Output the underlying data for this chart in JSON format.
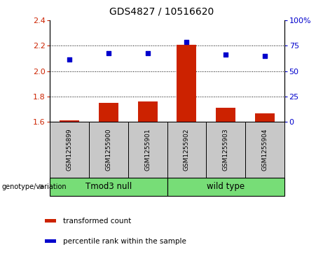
{
  "title": "GDS4827 / 10516620",
  "samples": [
    "GSM1255899",
    "GSM1255900",
    "GSM1255901",
    "GSM1255902",
    "GSM1255903",
    "GSM1255904"
  ],
  "bar_values": [
    1.61,
    1.75,
    1.76,
    2.21,
    1.71,
    1.67
  ],
  "scatter_values": [
    2.09,
    2.14,
    2.14,
    2.23,
    2.13,
    2.12
  ],
  "bar_color": "#cc2200",
  "scatter_color": "#0000cc",
  "ylim_left": [
    1.6,
    2.4
  ],
  "ylim_right": [
    0,
    100
  ],
  "yticks_left": [
    1.6,
    1.8,
    2.0,
    2.2,
    2.4
  ],
  "yticks_right": [
    0,
    25,
    50,
    75,
    100
  ],
  "ytick_labels_right": [
    "0",
    "25",
    "50",
    "75",
    "100%"
  ],
  "hlines": [
    1.8,
    2.0,
    2.2
  ],
  "groups": [
    {
      "label": "Tmod3 null",
      "indices": [
        0,
        1,
        2
      ],
      "color": "#77dd77"
    },
    {
      "label": "wild type",
      "indices": [
        3,
        4,
        5
      ],
      "color": "#77dd77"
    }
  ],
  "group_label": "genotype/variation",
  "legend_items": [
    {
      "label": "transformed count",
      "color": "#cc2200"
    },
    {
      "label": "percentile rank within the sample",
      "color": "#0000cc"
    }
  ],
  "bar_width": 0.5,
  "sample_box_color": "#c8c8c8",
  "title_fontsize": 10,
  "tick_fontsize": 8,
  "sample_fontsize": 6.5,
  "group_fontsize": 8.5,
  "legend_fontsize": 7.5
}
